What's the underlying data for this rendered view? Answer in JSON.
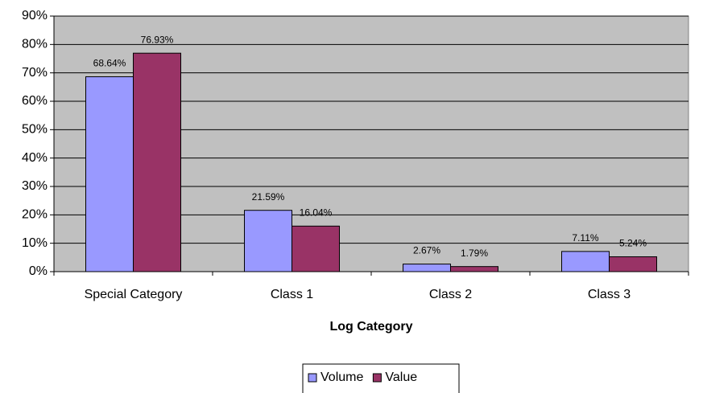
{
  "chart_data": {
    "type": "bar",
    "x_label": "Log Category",
    "categories": [
      "Special Category",
      "Class 1",
      "Class 2",
      "Class 3"
    ],
    "series": [
      {
        "name": "Volume",
        "color": "#9999ff",
        "values": [
          68.64,
          21.59,
          2.67,
          7.11
        ],
        "value_labels": [
          "68.64%",
          "21.59%",
          "2.67%",
          "7.11%"
        ]
      },
      {
        "name": "Value",
        "color": "#993366",
        "values": [
          76.93,
          16.04,
          1.79,
          5.24
        ],
        "value_labels": [
          "76.93%",
          "16.04%",
          "1.79%",
          "5.24%"
        ]
      }
    ],
    "ylim": [
      0,
      90
    ],
    "yticks": [
      {
        "value": 0,
        "label": "0%"
      },
      {
        "value": 10,
        "label": "10%"
      },
      {
        "value": 20,
        "label": "20%"
      },
      {
        "value": 30,
        "label": "30%"
      },
      {
        "value": 40,
        "label": "40%"
      },
      {
        "value": 50,
        "label": "50%"
      },
      {
        "value": 60,
        "label": "60%"
      },
      {
        "value": 70,
        "label": "70%"
      },
      {
        "value": 80,
        "label": "80%"
      },
      {
        "value": 90,
        "label": "90%"
      }
    ],
    "grid": true,
    "legend": "bottom",
    "plot_background": "#c0c0c0"
  }
}
